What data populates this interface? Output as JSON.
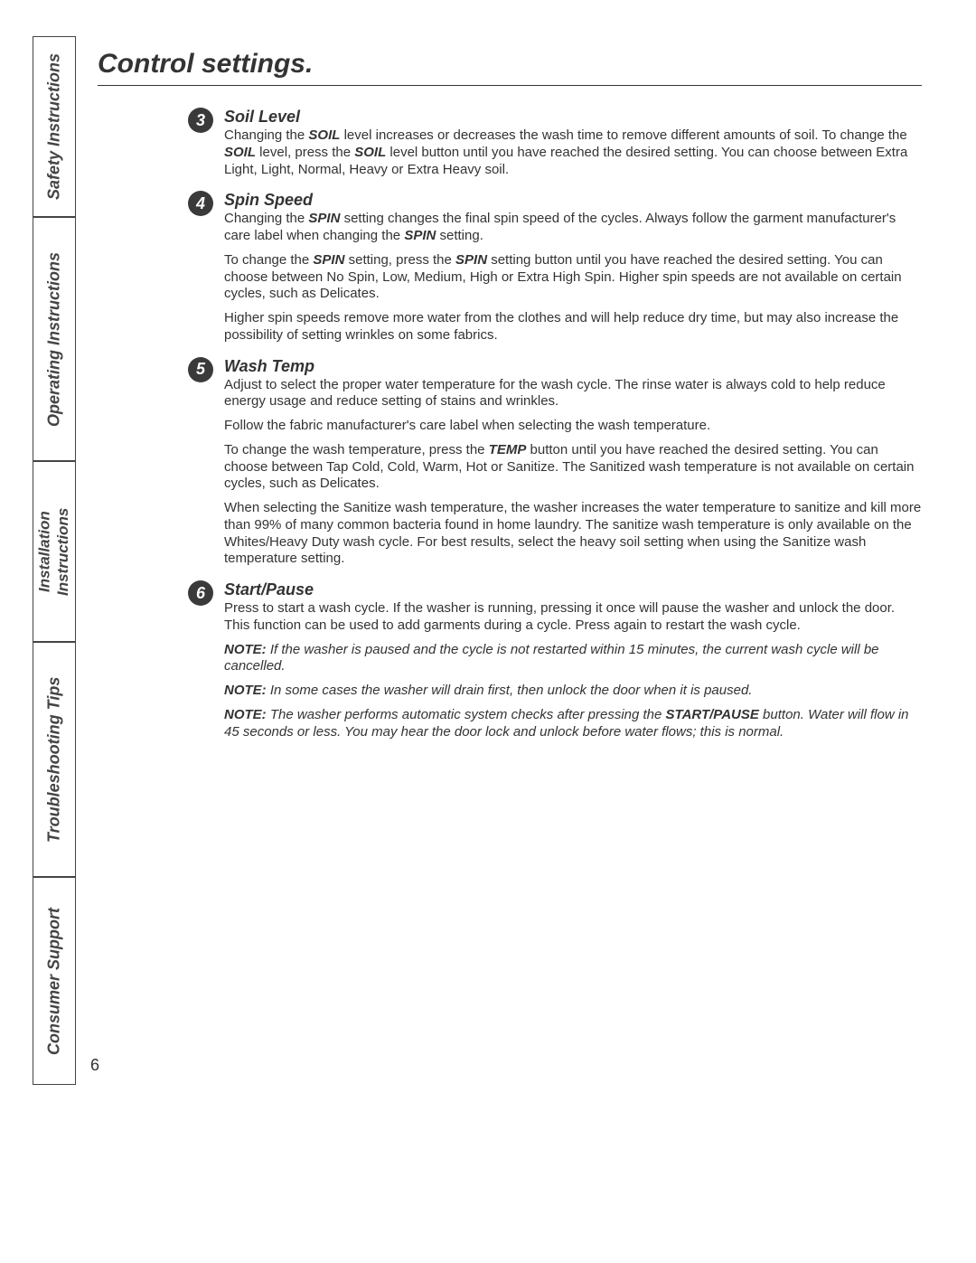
{
  "colors": {
    "text": "#333333",
    "badge_bg": "#3a3a3a",
    "badge_text": "#ffffff",
    "border": "#444444",
    "background": "#ffffff"
  },
  "typography": {
    "body_font": "Arial, Helvetica, sans-serif",
    "title_fontsize": 30,
    "section_title_fontsize": 18,
    "body_fontsize": 15,
    "tab_fontsize": 18
  },
  "page_number": "6",
  "title": "Control settings.",
  "tabs": [
    "Safety Instructions",
    "Operating Instructions",
    "Installation Instructions",
    "Troubleshooting Tips",
    "Consumer Support"
  ],
  "sections": [
    {
      "badge": "3",
      "title": "Soil Level",
      "paragraphs": [
        {
          "html": "Changing the <span class='bolditalic'>SOIL</span> level increases or decreases the wash time to remove different amounts of soil. To change the <span class='bolditalic'>SOIL</span> level, press the <span class='bolditalic'>SOIL</span> level button until you have reached the desired setting. You can choose between Extra Light, Light, Normal, Heavy or Extra Heavy soil."
        }
      ]
    },
    {
      "badge": "4",
      "title": "Spin Speed",
      "paragraphs": [
        {
          "html": "Changing the <span class='bolditalic'>SPIN</span> setting changes the final spin speed of the cycles. Always follow the garment manufacturer's care label when changing the <span class='bolditalic'>SPIN</span> setting."
        },
        {
          "html": "To change the <span class='bolditalic'>SPIN</span> setting, press the <span class='bolditalic'>SPIN</span> setting button until you have reached the desired setting. You can choose between No Spin, Low, Medium, High or Extra High Spin. Higher spin speeds are not available on certain cycles, such as Delicates."
        },
        {
          "html": "Higher spin speeds remove more water from the clothes and will help reduce dry time, but may also increase the possibility of setting wrinkles on some fabrics."
        }
      ]
    },
    {
      "badge": "5",
      "title": "Wash Temp",
      "paragraphs": [
        {
          "html": "Adjust to select the proper water temperature for the wash cycle. The rinse water is always cold to help reduce energy usage and reduce setting of stains and wrinkles."
        },
        {
          "html": "Follow the fabric manufacturer's care label when selecting the wash temperature."
        },
        {
          "html": "To change the wash temperature, press the <span class='bolditalic'>TEMP</span> button until you have reached the desired setting. You can choose between Tap Cold, Cold, Warm, Hot or Sanitize. The Sanitized wash temperature is not available on certain cycles, such as Delicates."
        },
        {
          "html": "When selecting the Sanitize wash temperature, the washer increases the water temperature to sanitize and kill more than 99% of many common bacteria found in home laundry. The sanitize wash temperature is only available on the Whites/Heavy Duty wash cycle. For best results, select the heavy soil setting when using the Sanitize wash temperature setting."
        }
      ]
    },
    {
      "badge": "6",
      "title": "Start/Pause",
      "paragraphs": [
        {
          "html": "Press to start a wash cycle. If the washer is running, pressing it once will pause the washer and unlock the door. This function can be used to add garments during a cycle. Press again to restart the wash cycle."
        },
        {
          "html": "<span class='bolditalic'>NOTE:</span> <span class='italic'>If the washer is paused and the cycle is not restarted within 15 minutes, the current wash cycle will be cancelled.</span>"
        },
        {
          "html": "<span class='bolditalic'>NOTE:</span> <span class='italic'>In some cases the washer will drain first, then unlock the door when it is paused.</span>"
        },
        {
          "html": "<span class='bolditalic'>NOTE:</span> <span class='italic'>The washer performs automatic system checks after pressing the </span><span class='bolditalic'>START/PAUSE</span><span class='italic'> button. Water will flow in 45 seconds or less. You may hear the door lock and unlock before water flows; this is normal.</span>"
        }
      ]
    }
  ]
}
